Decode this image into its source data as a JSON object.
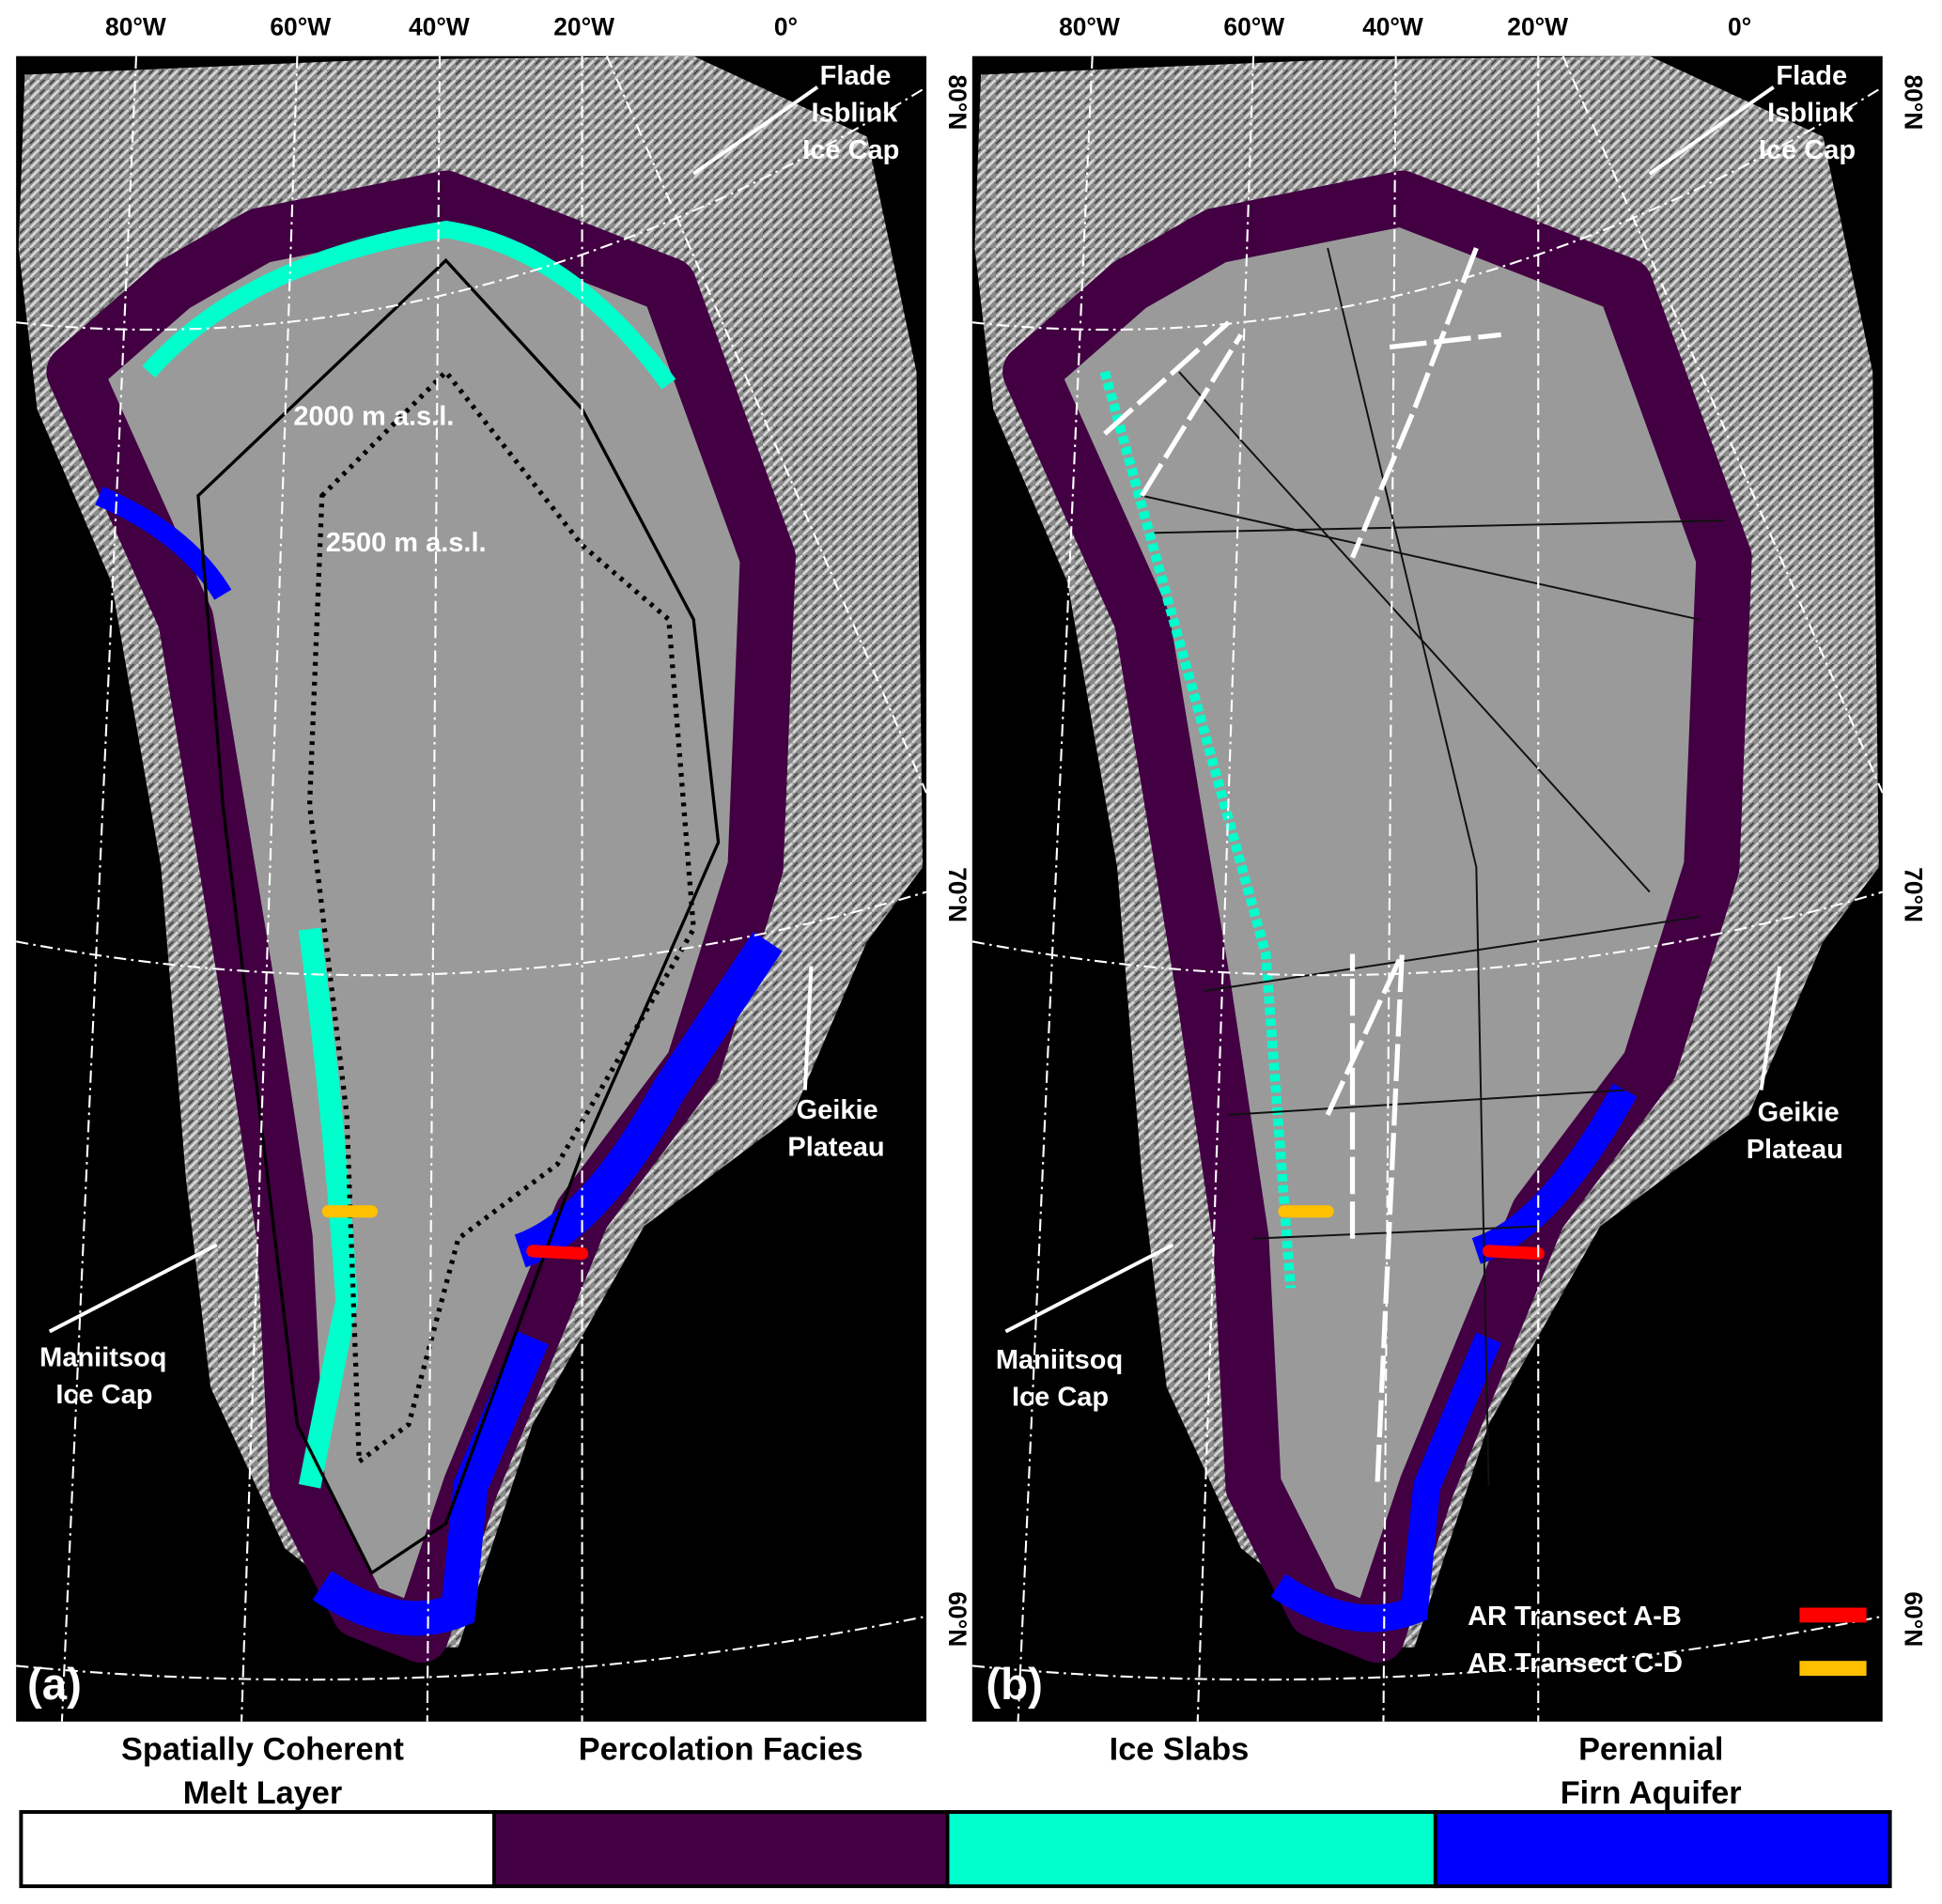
{
  "panels": [
    {
      "label": "(a)",
      "contours": [
        "2000 m a.s.l.",
        "2500 m a.s.l."
      ]
    },
    {
      "label": "(b)"
    }
  ],
  "lon_ticks": [
    "80°W",
    "60°W",
    "40°W",
    "20°W",
    "0°"
  ],
  "lat_ticks": [
    "80°N",
    "70°N",
    "60°N"
  ],
  "places": {
    "flade": [
      "Flade",
      "Isblink",
      "Ice Cap"
    ],
    "geikie": [
      "Geikie",
      "Plateau"
    ],
    "maniitsoq": [
      "Maniitsoq",
      "Ice Cap"
    ]
  },
  "transects": [
    {
      "label": "AR Transect A-B",
      "color": "#ff0000"
    },
    {
      "label": "AR Transect C-D",
      "color": "#ffc000"
    }
  ],
  "legend": [
    {
      "lines": [
        "Spatially Coherent",
        "Melt Layer"
      ],
      "color": "#ffffff"
    },
    {
      "lines": [
        "Percolation Facies"
      ],
      "color": "#420042"
    },
    {
      "lines": [
        "Ice Slabs"
      ],
      "color": "#00ffcc"
    },
    {
      "lines": [
        "Perennial",
        "Firn Aquifer"
      ],
      "color": "#0000ff"
    }
  ]
}
